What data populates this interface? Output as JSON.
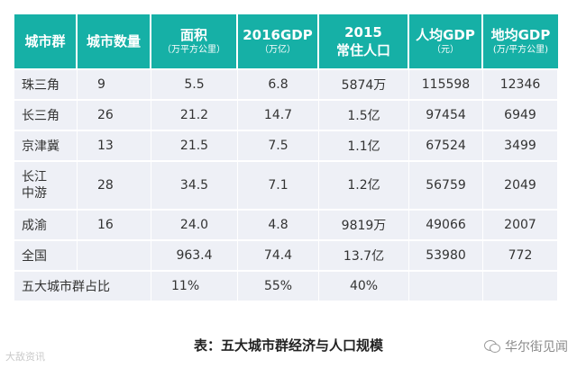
{
  "table": {
    "headers": [
      {
        "main": "城市群",
        "sub": ""
      },
      {
        "main": "城市数量",
        "sub": ""
      },
      {
        "main": "面积",
        "sub": "（万平方公里）"
      },
      {
        "main": "2016GDP",
        "sub": "（万亿）"
      },
      {
        "main": "2015",
        "sub": "常住人口"
      },
      {
        "main": "人均GDP",
        "sub": "（元）"
      },
      {
        "main": "地均GDP",
        "sub": "(万/平方公里)"
      }
    ],
    "rows": [
      {
        "name": "珠三角",
        "count": "9",
        "area": "5.5",
        "gdp": "6.8",
        "pop": "5874万",
        "per_capita": "115598",
        "per_area": "12346"
      },
      {
        "name": "长三角",
        "count": "26",
        "area": "21.2",
        "gdp": "14.7",
        "pop": "1.5亿",
        "per_capita": "97454",
        "per_area": "6949"
      },
      {
        "name": "京津冀",
        "count": "13",
        "area": "21.5",
        "gdp": "7.5",
        "pop": "1.1亿",
        "per_capita": "67524",
        "per_area": "3499"
      },
      {
        "name_line1": "长江",
        "name_line2": "中游",
        "count": "28",
        "area": "34.5",
        "gdp": "7.1",
        "pop": "1.2亿",
        "per_capita": "56759",
        "per_area": "2049"
      },
      {
        "name": "成渝",
        "count": "16",
        "area": "24.0",
        "gdp": "4.8",
        "pop": "9819万",
        "per_capita": "49066",
        "per_area": "2007"
      },
      {
        "name": "全国",
        "count": "",
        "area": "963.4",
        "gdp": "74.4",
        "pop": "13.7亿",
        "per_capita": "53980",
        "per_area": "772"
      }
    ],
    "summary": {
      "name": "五大城市群占比",
      "area": "11%",
      "gdp": "55%",
      "pop": "40%"
    }
  },
  "caption": "表：五大城市群经济与人口规模",
  "watermark_left": "大敌资讯",
  "watermark_right": "华尔街见闻",
  "colors": {
    "header": "#16b0a6",
    "row": "#eef0f6"
  }
}
